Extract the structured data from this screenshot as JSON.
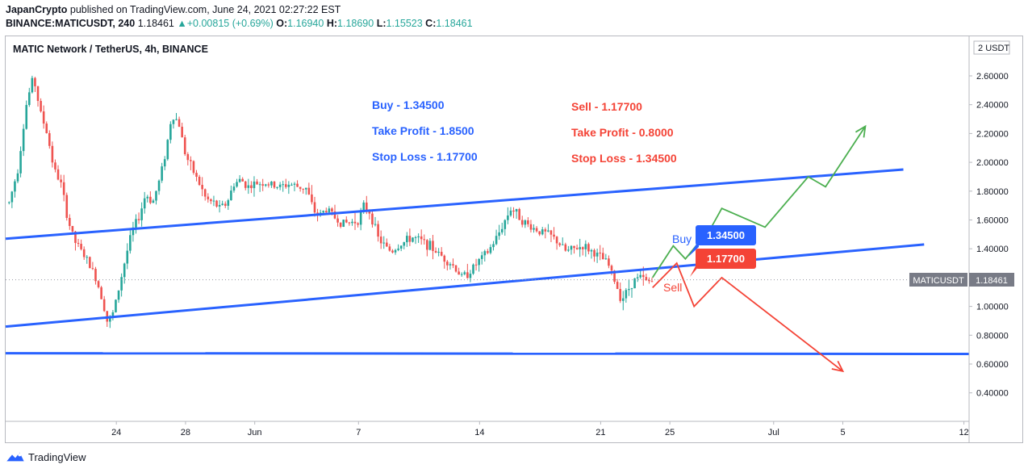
{
  "header": {
    "publisher": "JapanCrypto",
    "published_text": "published on TradingView.com, June 24, 2021 02:27:22 EST",
    "symbol": "BINANCE:MATICUSDT, 240",
    "last": "1.18461",
    "change": "+0.00815 (+0.69%)",
    "o_label": "O:",
    "o_value": "1.16940",
    "h_label": "H:",
    "h_value": "1.18690",
    "l_label": "L:",
    "l_value": "1.15523",
    "c_label": "C:",
    "c_value": "1.18461"
  },
  "chart_data": {
    "type": "candlestick",
    "title": "MATIC Network / TetherUS, 4h, BINANCE",
    "currency": "USDT",
    "ylim": [
      0.2,
      2.8
    ],
    "y_ticks": [
      "2.60000",
      "2.40000",
      "2.20000",
      "2.00000",
      "1.80000",
      "1.60000",
      "1.40000",
      "1.20000",
      "1.00000",
      "0.80000",
      "0.60000",
      "0.40000"
    ],
    "y_tick_values": [
      2.6,
      2.4,
      2.2,
      2.0,
      1.8,
      1.6,
      1.4,
      1.2,
      1.0,
      0.8,
      0.6,
      0.4
    ],
    "x_ticks": [
      {
        "label": "24",
        "day": 24
      },
      {
        "label": "28",
        "day": 28
      },
      {
        "label": "Jun",
        "day": 32
      },
      {
        "label": "7",
        "day": 38
      },
      {
        "label": "14",
        "day": 45
      },
      {
        "label": "21",
        "day": 52
      },
      {
        "label": "25",
        "day": 56
      },
      {
        "label": "Jul",
        "day": 62
      },
      {
        "label": "5",
        "day": 66
      },
      {
        "label": "12",
        "day": 73
      }
    ],
    "xlim_days": [
      17.6,
      73.3
    ],
    "current_price": {
      "symbol": "MATICUSDT",
      "value": "1.18461",
      "y": 1.18461
    },
    "price_path": [
      [
        17.8,
        1.72
      ],
      [
        18.3,
        1.95
      ],
      [
        18.8,
        2.4
      ],
      [
        19.2,
        2.6
      ],
      [
        19.6,
        2.35
      ],
      [
        20.0,
        2.2
      ],
      [
        20.4,
        1.95
      ],
      [
        20.8,
        1.85
      ],
      [
        21.2,
        1.6
      ],
      [
        21.6,
        1.45
      ],
      [
        22.0,
        1.38
      ],
      [
        22.4,
        1.3
      ],
      [
        22.8,
        1.2
      ],
      [
        23.2,
        1.05
      ],
      [
        23.5,
        0.88
      ],
      [
        23.8,
        0.95
      ],
      [
        24.1,
        1.1
      ],
      [
        24.5,
        1.32
      ],
      [
        24.9,
        1.52
      ],
      [
        25.3,
        1.62
      ],
      [
        25.7,
        1.78
      ],
      [
        26.1,
        1.72
      ],
      [
        26.5,
        1.88
      ],
      [
        26.9,
        2.1
      ],
      [
        27.2,
        2.33
      ],
      [
        27.6,
        2.28
      ],
      [
        28.0,
        2.05
      ],
      [
        28.4,
        1.95
      ],
      [
        28.8,
        1.85
      ],
      [
        29.2,
        1.74
      ],
      [
        29.6,
        1.72
      ],
      [
        30.0,
        1.68
      ],
      [
        30.4,
        1.72
      ],
      [
        30.8,
        1.85
      ],
      [
        31.2,
        1.88
      ],
      [
        31.6,
        1.83
      ],
      [
        32.0,
        1.85
      ],
      [
        32.5,
        1.86
      ],
      [
        33.0,
        1.84
      ],
      [
        33.5,
        1.83
      ],
      [
        34.0,
        1.85
      ],
      [
        34.5,
        1.83
      ],
      [
        35.0,
        1.82
      ],
      [
        35.4,
        1.66
      ],
      [
        35.8,
        1.64
      ],
      [
        36.2,
        1.68
      ],
      [
        36.6,
        1.62
      ],
      [
        37.0,
        1.58
      ],
      [
        37.5,
        1.58
      ],
      [
        38.0,
        1.6
      ],
      [
        38.3,
        1.69
      ],
      [
        38.7,
        1.65
      ],
      [
        39.1,
        1.48
      ],
      [
        39.5,
        1.42
      ],
      [
        39.9,
        1.38
      ],
      [
        40.3,
        1.42
      ],
      [
        40.7,
        1.45
      ],
      [
        41.1,
        1.48
      ],
      [
        41.5,
        1.46
      ],
      [
        42.0,
        1.43
      ],
      [
        42.5,
        1.38
      ],
      [
        43.0,
        1.33
      ],
      [
        43.5,
        1.28
      ],
      [
        44.0,
        1.2
      ],
      [
        44.5,
        1.25
      ],
      [
        45.0,
        1.32
      ],
      [
        45.5,
        1.38
      ],
      [
        46.0,
        1.48
      ],
      [
        46.4,
        1.58
      ],
      [
        46.8,
        1.68
      ],
      [
        47.2,
        1.64
      ],
      [
        47.6,
        1.58
      ],
      [
        48.0,
        1.55
      ],
      [
        48.5,
        1.52
      ],
      [
        49.0,
        1.5
      ],
      [
        49.5,
        1.45
      ],
      [
        50.0,
        1.38
      ],
      [
        50.5,
        1.4
      ],
      [
        51.0,
        1.42
      ],
      [
        51.5,
        1.38
      ],
      [
        52.0,
        1.34
      ],
      [
        52.4,
        1.3
      ],
      [
        52.8,
        1.18
      ],
      [
        53.2,
        1.05
      ],
      [
        53.5,
        1.1
      ],
      [
        53.9,
        1.18
      ],
      [
        54.3,
        1.2
      ],
      [
        54.7,
        1.17
      ],
      [
        55.1,
        1.18
      ]
    ],
    "trendlines": [
      {
        "name": "upper-channel",
        "from": [
          17.6,
          1.47
        ],
        "to": [
          69.5,
          1.95
        ]
      },
      {
        "name": "lower-channel",
        "from": [
          17.6,
          0.86
        ],
        "to": [
          70.7,
          1.43
        ]
      },
      {
        "name": "support",
        "from": [
          17.6,
          0.675
        ],
        "to": [
          73.3,
          0.67
        ]
      }
    ],
    "bull_path": [
      [
        55.0,
        1.2
      ],
      [
        56.2,
        1.42
      ],
      [
        56.9,
        1.33
      ],
      [
        58.4,
        1.55
      ],
      [
        59.0,
        1.68
      ],
      [
        61.5,
        1.55
      ],
      [
        64.0,
        1.9
      ],
      [
        65.0,
        1.83
      ],
      [
        67.3,
        2.25
      ]
    ],
    "bear_path": [
      [
        55.0,
        1.13
      ],
      [
        56.4,
        1.3
      ],
      [
        57.4,
        1.0
      ],
      [
        59.0,
        1.2
      ],
      [
        66.0,
        0.55
      ]
    ],
    "annotations": {
      "buy_plan": [
        "Buy - 1.34500",
        "Take Profit - 1.8500",
        "Stop Loss - 1.17700"
      ],
      "sell_plan": [
        "Sell - 1.17700",
        "Take Profit - 0.8000",
        "Stop Loss - 1.34500"
      ],
      "buy_label": "Buy",
      "sell_label": "Sell",
      "buy_tag": "1.34500",
      "sell_tag": "1.17700"
    },
    "colors": {
      "up": "#26a69a",
      "down": "#ef5350",
      "trend": "#2962ff",
      "bull": "#4caf50",
      "bear": "#f44336",
      "buy_text": "#2962ff",
      "sell_text": "#f44336"
    }
  },
  "footer": {
    "brand": "TradingView"
  }
}
